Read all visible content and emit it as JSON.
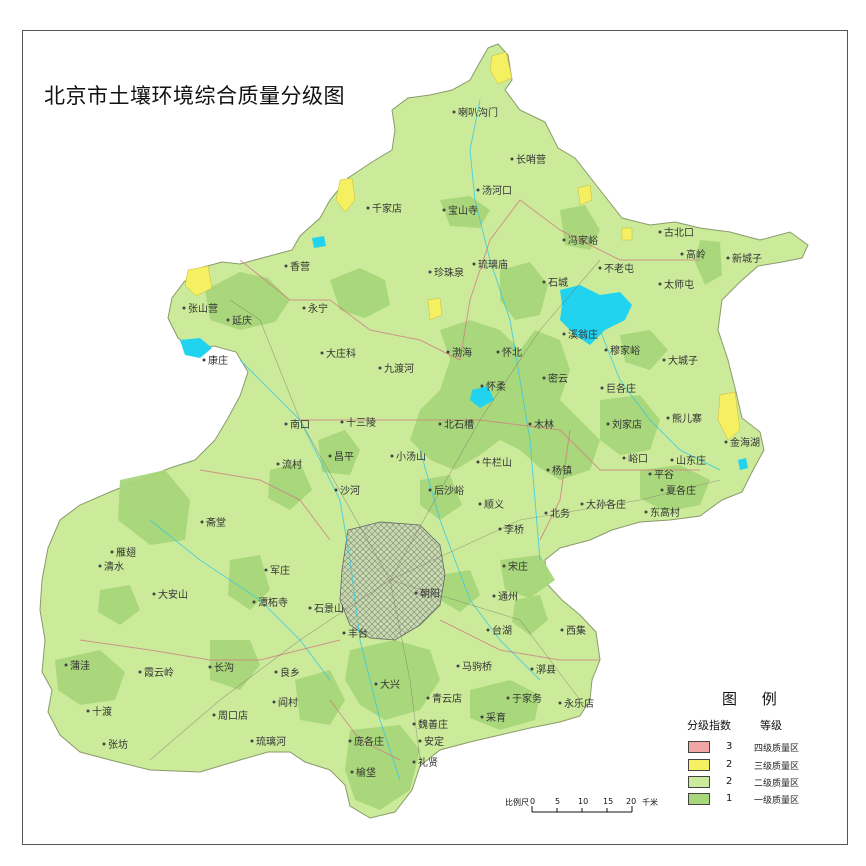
{
  "title": "北京市土壤环境综合质量分级图",
  "colors": {
    "level1": "#a8d67a",
    "level2": "#cbeb9b",
    "level3": "#f5ef62",
    "level4": "#f2a5a5",
    "water": "#22d3f0",
    "background": "#ffffff",
    "border": "#d08080"
  },
  "legend": {
    "title": "图 例",
    "col_grade": "分级指数",
    "col_level": "等级",
    "items": [
      {
        "num": "3",
        "label": "四级质量区",
        "color": "#f2a5a5"
      },
      {
        "num": "2",
        "label": "三级质量区",
        "color": "#f5ef62"
      },
      {
        "num": "2",
        "label": "二级质量区",
        "color": "#cbeb9b"
      },
      {
        "num": "1",
        "label": "一级质量区",
        "color": "#a8d67a"
      }
    ]
  },
  "scale": {
    "ratio": "比例尺",
    "ticks": [
      "0",
      "5",
      "10",
      "15",
      "20"
    ],
    "unit": "千米"
  },
  "places": [
    "喇叭沟门",
    "长哨营",
    "汤河口",
    "宝山寺",
    "千家店",
    "冯家峪",
    "古北口",
    "高岭",
    "新城子",
    "琉璃庙",
    "不老屯",
    "太师屯",
    "珍珠泉",
    "香营",
    "永宁",
    "张山营",
    "延庆",
    "康庄",
    "石城",
    "溪翁庄",
    "穆家峪",
    "大城子",
    "大庄科",
    "九渡河",
    "渤海",
    "怀北",
    "怀柔",
    "密云",
    "巨各庄",
    "刘家店",
    "熊儿寨",
    "南口",
    "十三陵",
    "北石槽",
    "木林",
    "峪口",
    "山东庄",
    "金海湖",
    "流村",
    "昌平",
    "小汤山",
    "牛栏山",
    "杨镇",
    "平谷",
    "夏各庄",
    "沙河",
    "后沙峪",
    "顺义",
    "大孙各庄",
    "东高村",
    "斋堂",
    "雁翅",
    "北务",
    "清水",
    "李桥",
    "大安山",
    "军庄",
    "潭柘寺",
    "宋庄",
    "石景山",
    "朝阳",
    "通州",
    "丰台",
    "台湖",
    "西集",
    "蒲洼",
    "霞云岭",
    "长沟",
    "良乡",
    "马驹桥",
    "漷县",
    "周口店",
    "阎村",
    "大兴",
    "青云店",
    "于家务",
    "永乐店",
    "十渡",
    "采育",
    "张坊",
    "琉璃河",
    "魏善庄",
    "安定",
    "庞各庄",
    "礼贤",
    "榆垡"
  ]
}
